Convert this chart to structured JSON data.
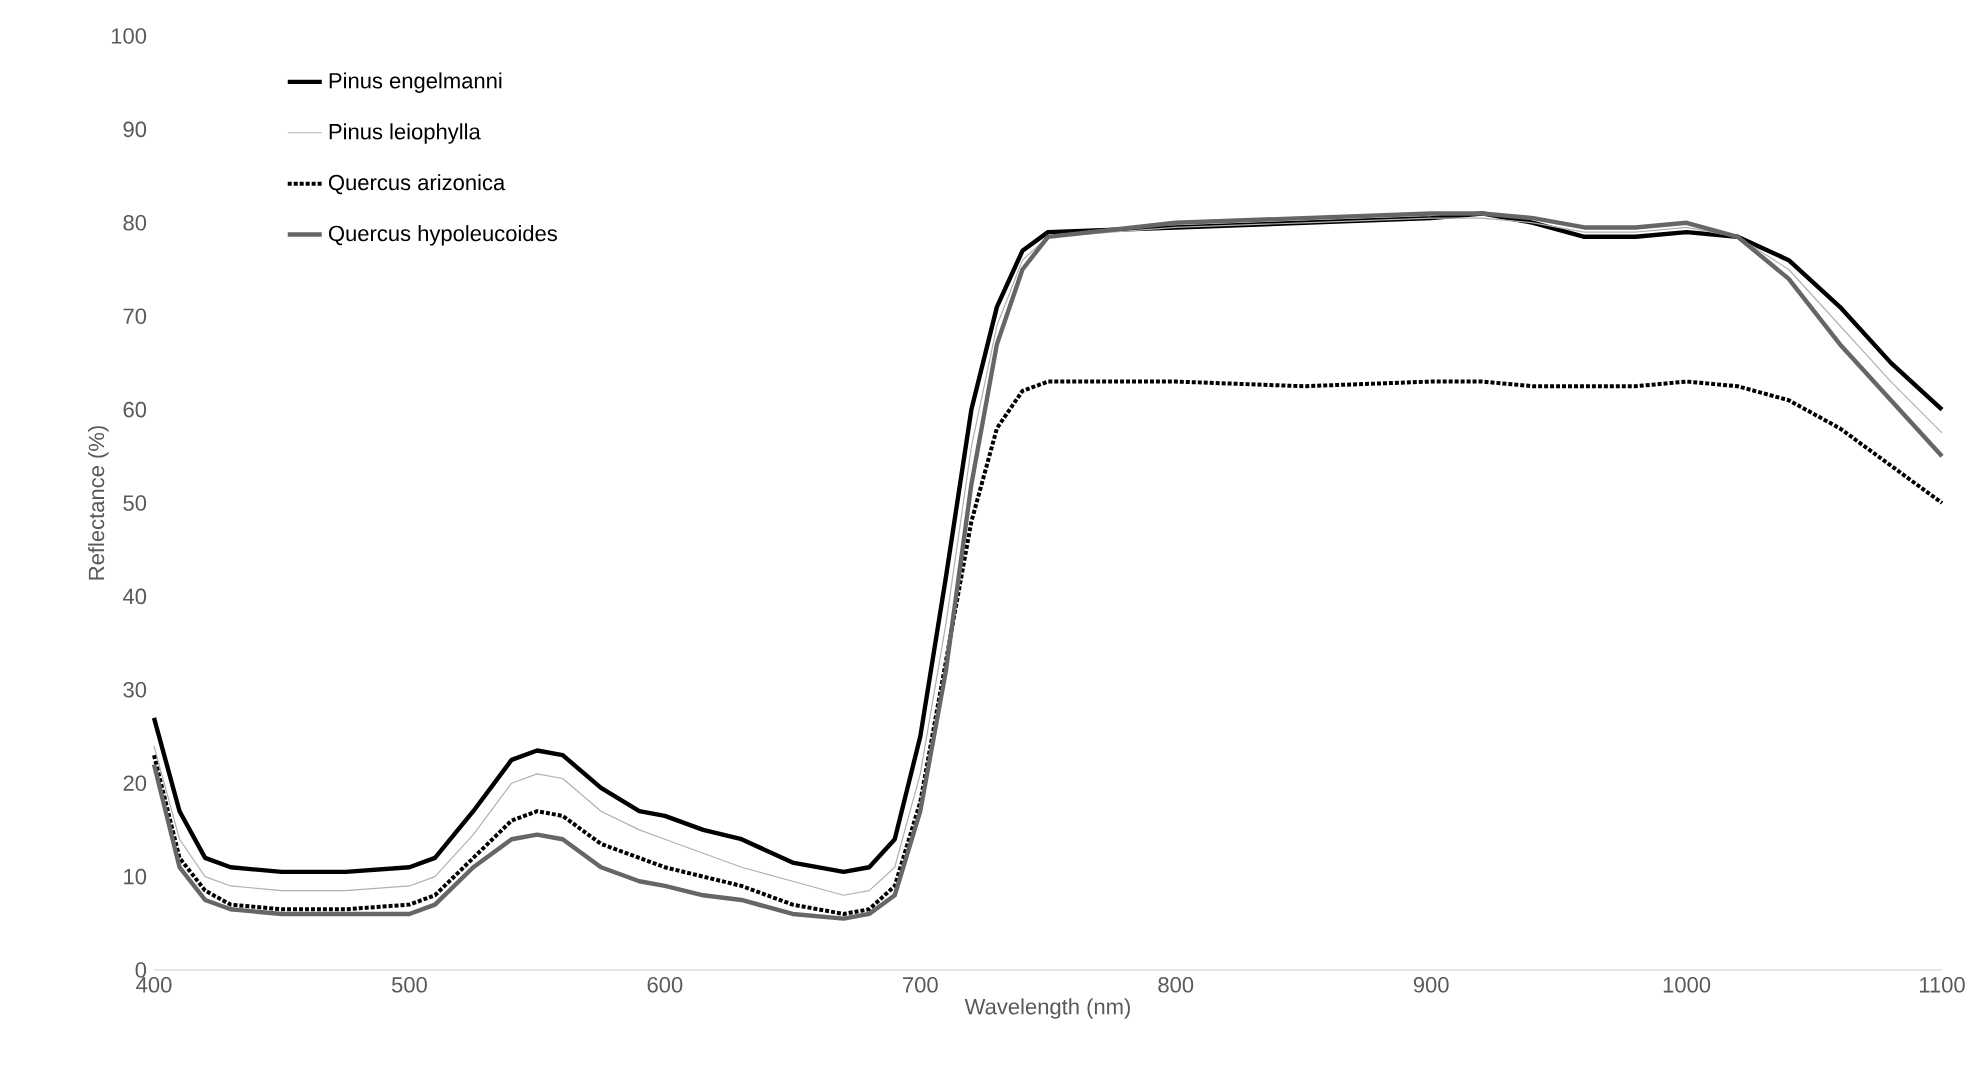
{
  "chart_data": {
    "type": "line",
    "xlabel": "Wavelength (nm)",
    "ylabel": "Reflectance (%)",
    "xlim": [
      400,
      1100
    ],
    "ylim": [
      0,
      100
    ],
    "xticks": [
      400,
      500,
      600,
      700,
      800,
      900,
      1000,
      1100
    ],
    "yticks": [
      0,
      10,
      20,
      30,
      40,
      50,
      60,
      70,
      80,
      90,
      100
    ],
    "legend": "top left",
    "grid": false,
    "marker": "none",
    "x": [
      400,
      410,
      420,
      430,
      450,
      475,
      500,
      510,
      525,
      540,
      550,
      560,
      575,
      590,
      600,
      615,
      630,
      650,
      670,
      680,
      690,
      700,
      710,
      720,
      730,
      740,
      750,
      800,
      850,
      900,
      920,
      940,
      960,
      980,
      1000,
      1020,
      1040,
      1060,
      1080,
      1100
    ],
    "series": [
      {
        "name": "Pinus engelmanni",
        "color": "#000000",
        "line_style": "solid",
        "values": [
          27,
          17,
          12,
          11,
          10.5,
          10.5,
          11,
          12,
          17,
          22.5,
          23.5,
          23,
          19.5,
          17,
          16.5,
          15,
          14,
          11.5,
          10.5,
          11,
          14,
          25,
          42,
          60,
          71,
          77,
          79,
          79.5,
          80,
          80.5,
          81,
          80,
          78.5,
          78.5,
          79,
          78.5,
          76,
          71,
          65,
          60
        ]
      },
      {
        "name": "Pinus leiophylla",
        "color": "#b0b0b0",
        "line_style": "solid",
        "values": [
          24,
          14,
          10,
          9,
          8.5,
          8.5,
          9,
          10,
          14.5,
          20,
          21,
          20.5,
          17,
          15,
          14,
          12.5,
          11,
          9.5,
          8,
          8.5,
          11,
          21,
          37,
          56,
          69,
          76,
          78.5,
          79.5,
          80,
          80.5,
          80.5,
          80,
          79,
          79,
          79.5,
          78.5,
          75,
          69,
          63,
          57.5
        ]
      },
      {
        "name": "Quercus arizonica",
        "color": "#000000",
        "line_style": "dotted",
        "values": [
          23,
          12,
          8.5,
          7,
          6.5,
          6.5,
          7,
          8,
          12,
          16,
          17,
          16.5,
          13.5,
          12,
          11,
          10,
          9,
          7,
          6,
          6.5,
          9,
          18,
          33,
          48,
          58,
          62,
          63,
          63,
          62.5,
          63,
          63,
          62.5,
          62.5,
          62.5,
          63,
          62.5,
          61,
          58,
          54,
          50
        ]
      },
      {
        "name": "Quercus hypoleucoides",
        "color": "#666666",
        "line_style": "solid",
        "values": [
          22,
          11,
          7.5,
          6.5,
          6,
          6,
          6,
          7,
          11,
          14,
          14.5,
          14,
          11,
          9.5,
          9,
          8,
          7.5,
          6,
          5.5,
          6,
          8,
          17,
          32,
          52,
          67,
          75,
          78.5,
          80,
          80.5,
          81,
          81,
          80.5,
          79.5,
          79.5,
          80,
          78.5,
          74,
          67,
          61,
          55
        ]
      }
    ]
  }
}
